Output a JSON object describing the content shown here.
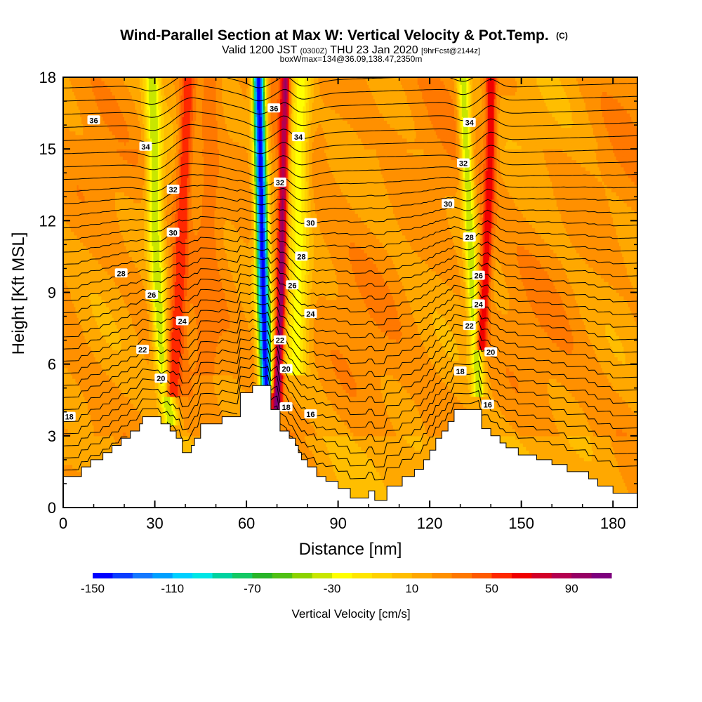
{
  "chart_data": {
    "type": "heatmap",
    "title": "Wind-Parallel Section at Max W: Vertical Velocity & Pot.Temp.",
    "title_mark": "(C)",
    "subtitle_parts": [
      "Valid 1200 JST ",
      "(0300Z)",
      " THU 23 Jan 2020 ",
      "[9hrFcst@2144z]"
    ],
    "subtitle2": "boxWmax=134@36.09,138.47,2350m",
    "xlabel": "Distance [nm]",
    "ylabel": "Height [Kft MSL]",
    "xlim": [
      0,
      188
    ],
    "ylim": [
      0,
      18
    ],
    "xticks": [
      "0",
      "30",
      "60",
      "90",
      "120",
      "150",
      "180"
    ],
    "yticks": [
      "0",
      "3",
      "6",
      "9",
      "12",
      "15",
      "18"
    ],
    "colorbar": {
      "title": "Vertical Velocity [cm/s]",
      "labels": [
        "-150",
        "-110",
        "-70",
        "-30",
        "10",
        "50",
        "90"
      ],
      "range": [
        -150,
        110
      ],
      "colors": [
        "#0000ff",
        "#0a3cff",
        "#1478ff",
        "#00a0ff",
        "#00d0ff",
        "#00e6e6",
        "#00d2a0",
        "#14c864",
        "#28b428",
        "#50c014",
        "#8cd200",
        "#c8e600",
        "#ffff00",
        "#ffe600",
        "#ffd200",
        "#ffbe00",
        "#ffa800",
        "#ff9000",
        "#ff7800",
        "#ff5a00",
        "#ff2800",
        "#f00000",
        "#d20028",
        "#b40050",
        "#960064",
        "#7d007d"
      ]
    },
    "contour_labels": [
      {
        "text": "36",
        "x": 10,
        "y": 16.2
      },
      {
        "text": "34",
        "x": 27,
        "y": 15.1
      },
      {
        "text": "32",
        "x": 36,
        "y": 13.3
      },
      {
        "text": "30",
        "x": 36,
        "y": 11.5
      },
      {
        "text": "28",
        "x": 19,
        "y": 9.8
      },
      {
        "text": "26",
        "x": 29,
        "y": 8.9
      },
      {
        "text": "24",
        "x": 39,
        "y": 7.8
      },
      {
        "text": "22",
        "x": 26,
        "y": 6.6
      },
      {
        "text": "20",
        "x": 32,
        "y": 5.4
      },
      {
        "text": "18",
        "x": 2,
        "y": 3.8
      },
      {
        "text": "36",
        "x": 69,
        "y": 16.7
      },
      {
        "text": "34",
        "x": 77,
        "y": 15.5
      },
      {
        "text": "32",
        "x": 71,
        "y": 13.6
      },
      {
        "text": "30",
        "x": 81,
        "y": 11.9
      },
      {
        "text": "28",
        "x": 78,
        "y": 10.5
      },
      {
        "text": "26",
        "x": 75,
        "y": 9.3
      },
      {
        "text": "24",
        "x": 81,
        "y": 8.1
      },
      {
        "text": "22",
        "x": 71,
        "y": 7.0
      },
      {
        "text": "20",
        "x": 73,
        "y": 5.8
      },
      {
        "text": "18",
        "x": 73,
        "y": 4.2
      },
      {
        "text": "16",
        "x": 81,
        "y": 3.9
      },
      {
        "text": "34",
        "x": 133,
        "y": 16.1
      },
      {
        "text": "32",
        "x": 131,
        "y": 14.4
      },
      {
        "text": "30",
        "x": 126,
        "y": 12.7
      },
      {
        "text": "28",
        "x": 133,
        "y": 11.3
      },
      {
        "text": "26",
        "x": 136,
        "y": 9.7
      },
      {
        "text": "24",
        "x": 136,
        "y": 8.5
      },
      {
        "text": "22",
        "x": 133,
        "y": 7.6
      },
      {
        "text": "20",
        "x": 140,
        "y": 6.5
      },
      {
        "text": "18",
        "x": 130,
        "y": 5.7
      },
      {
        "text": "16",
        "x": 139,
        "y": 4.3
      }
    ],
    "updraft_bands": [
      {
        "x": [
          29,
          30,
          30,
          31,
          32,
          33,
          34,
          35
        ],
        "y": [
          18,
          15,
          12,
          9,
          7,
          5.5,
          4.5,
          3.8
        ],
        "w": -40,
        "half_width": 2.5
      },
      {
        "x": [
          41,
          40,
          39,
          38,
          37,
          36
        ],
        "y": [
          18,
          15,
          12,
          9,
          7,
          5
        ],
        "w": 60,
        "half_width": 2.5
      },
      {
        "x": [
          64,
          64.5,
          65,
          65.5,
          66,
          66.5
        ],
        "y": [
          18,
          15,
          12,
          9,
          7,
          5.2
        ],
        "w": -150,
        "half_width": 2.0
      },
      {
        "x": [
          73,
          72.5,
          72,
          71.5,
          71,
          70
        ],
        "y": [
          18,
          15,
          12,
          9,
          7,
          4.5
        ],
        "w": 110,
        "half_width": 1.6
      },
      {
        "x": [
          78,
          77,
          77,
          77,
          76
        ],
        "y": [
          18,
          15,
          12,
          9,
          6
        ],
        "w": -25,
        "half_width": 3.5
      },
      {
        "x": [
          131,
          132,
          133,
          134,
          135,
          136
        ],
        "y": [
          18,
          15,
          12,
          9,
          7,
          5
        ],
        "w": -40,
        "half_width": 2.0
      },
      {
        "x": [
          140,
          140,
          139,
          138,
          137
        ],
        "y": [
          18,
          15,
          12,
          9,
          7
        ],
        "w": 70,
        "half_width": 1.8
      },
      {
        "x": [
          48,
          48,
          47,
          47
        ],
        "y": [
          18,
          14,
          10,
          6
        ],
        "w": 35,
        "half_width": 4.0
      }
    ],
    "terrain": [
      [
        0,
        1.3
      ],
      [
        6,
        1.3
      ],
      [
        6,
        1.7
      ],
      [
        9,
        1.7
      ],
      [
        9,
        2
      ],
      [
        13,
        2
      ],
      [
        13,
        2.3
      ],
      [
        16,
        2.3
      ],
      [
        16,
        2.6
      ],
      [
        19,
        2.6
      ],
      [
        19,
        2.9
      ],
      [
        22,
        2.9
      ],
      [
        22,
        3.2
      ],
      [
        25,
        3.2
      ],
      [
        25,
        3.5
      ],
      [
        26,
        3.5
      ],
      [
        26,
        3.8
      ],
      [
        32,
        3.8
      ],
      [
        32,
        3.5
      ],
      [
        35,
        3.5
      ],
      [
        35,
        3.2
      ],
      [
        37,
        3.2
      ],
      [
        37,
        2.9
      ],
      [
        39,
        2.9
      ],
      [
        39,
        2.3
      ],
      [
        42,
        2.3
      ],
      [
        42,
        2.6
      ],
      [
        43,
        2.6
      ],
      [
        43,
        2.9
      ],
      [
        45,
        2.9
      ],
      [
        45,
        3.5
      ],
      [
        52,
        3.5
      ],
      [
        52,
        3.8
      ],
      [
        58,
        3.8
      ],
      [
        58,
        4.8
      ],
      [
        62,
        4.8
      ],
      [
        62,
        5.1
      ],
      [
        68,
        5.1
      ],
      [
        68,
        4.1
      ],
      [
        71,
        4.1
      ],
      [
        71,
        3.2
      ],
      [
        74,
        3.2
      ],
      [
        74,
        2.9
      ],
      [
        76,
        2.9
      ],
      [
        76,
        2.6
      ],
      [
        77,
        2.6
      ],
      [
        77,
        2.3
      ],
      [
        78,
        2.3
      ],
      [
        78,
        2
      ],
      [
        80,
        2
      ],
      [
        80,
        1.7
      ],
      [
        83,
        1.7
      ],
      [
        83,
        1.3
      ],
      [
        86,
        1.3
      ],
      [
        86,
        1.1
      ],
      [
        90,
        1.1
      ],
      [
        90,
        0.8
      ],
      [
        94,
        0.8
      ],
      [
        94,
        0.4
      ],
      [
        100,
        0.4
      ],
      [
        100,
        0.7
      ],
      [
        102,
        0.7
      ],
      [
        102,
        0.3
      ],
      [
        106,
        0.3
      ],
      [
        106,
        0.9
      ],
      [
        111,
        0.9
      ],
      [
        111,
        1.3
      ],
      [
        115,
        1.3
      ],
      [
        115,
        1.6
      ],
      [
        118,
        1.6
      ],
      [
        118,
        2
      ],
      [
        120,
        2
      ],
      [
        120,
        2.4
      ],
      [
        122,
        2.4
      ],
      [
        122,
        2.9
      ],
      [
        124,
        2.9
      ],
      [
        124,
        3.2
      ],
      [
        126,
        3.2
      ],
      [
        126,
        3.6
      ],
      [
        128,
        3.6
      ],
      [
        128,
        4.1
      ],
      [
        137,
        4.1
      ],
      [
        137,
        3.3
      ],
      [
        140,
        3.3
      ],
      [
        140,
        3
      ],
      [
        143,
        3
      ],
      [
        143,
        2.7
      ],
      [
        145,
        2.7
      ],
      [
        145,
        2.5
      ],
      [
        149,
        2.5
      ],
      [
        149,
        2.2
      ],
      [
        155,
        2.2
      ],
      [
        155,
        2
      ],
      [
        160,
        2
      ],
      [
        160,
        1.8
      ],
      [
        165,
        1.8
      ],
      [
        165,
        1.5
      ],
      [
        172,
        1.5
      ],
      [
        172,
        1.2
      ],
      [
        175,
        1.2
      ],
      [
        175,
        0.9
      ],
      [
        180,
        0.9
      ],
      [
        180,
        0.6
      ],
      [
        188,
        0.6
      ]
    ]
  }
}
